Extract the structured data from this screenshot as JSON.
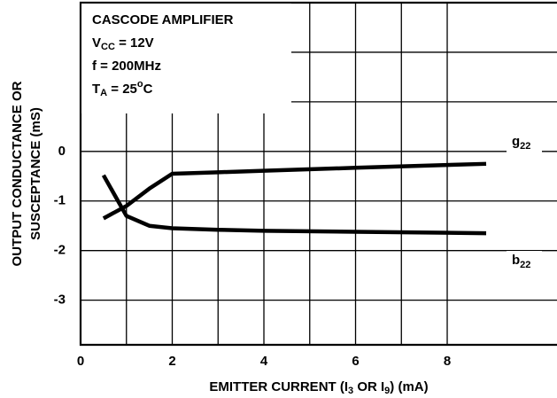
{
  "chart_data": {
    "type": "line",
    "x_label": [
      {
        "t": "EMITTER CURRENT (I"
      },
      {
        "t": "3",
        "sub": true
      },
      {
        "t": " OR I"
      },
      {
        "t": "9",
        "sub": true
      },
      {
        "t": ") (mA)"
      }
    ],
    "y_label": [
      "OUTPUT CONDUCTANCE OR",
      "SUSCEPTANCE (mS)"
    ],
    "box": [
      [
        {
          "t": "CASCODE AMPLIFIER"
        }
      ],
      [
        {
          "t": "V"
        },
        {
          "t": "CC",
          "sub": true
        },
        {
          "t": " = 12V"
        }
      ],
      [
        {
          "t": "f = 200MHz"
        }
      ],
      [
        {
          "t": "T"
        },
        {
          "t": "A",
          "sub": true
        },
        {
          "t": " = 25"
        },
        {
          "t": "o",
          "sup": true
        },
        {
          "t": "C"
        }
      ]
    ],
    "x": [
      0.5,
      1,
      1.5,
      2,
      3,
      4,
      6,
      8.85
    ],
    "series": [
      {
        "name": "g22",
        "color": "#000000",
        "values": [
          -1.35,
          -1.1,
          -0.75,
          -0.45,
          -0.42,
          -0.39,
          -0.33,
          -0.25
        ]
      },
      {
        "name": "b22",
        "color": "#000000",
        "values": [
          -0.48,
          -1.3,
          -1.5,
          -1.55,
          -1.58,
          -1.6,
          -1.62,
          -1.65
        ]
      }
    ],
    "xlim": [
      0,
      8.85
    ],
    "ylim": [
      -3.9,
      3
    ],
    "xticks": [
      0,
      2,
      4,
      6,
      8
    ],
    "yticks": [
      -3,
      -2,
      -1,
      0
    ],
    "minor_xticks": [
      1,
      3,
      5,
      7
    ],
    "minor_yticks": [
      1,
      2
    ],
    "grid": true
  }
}
